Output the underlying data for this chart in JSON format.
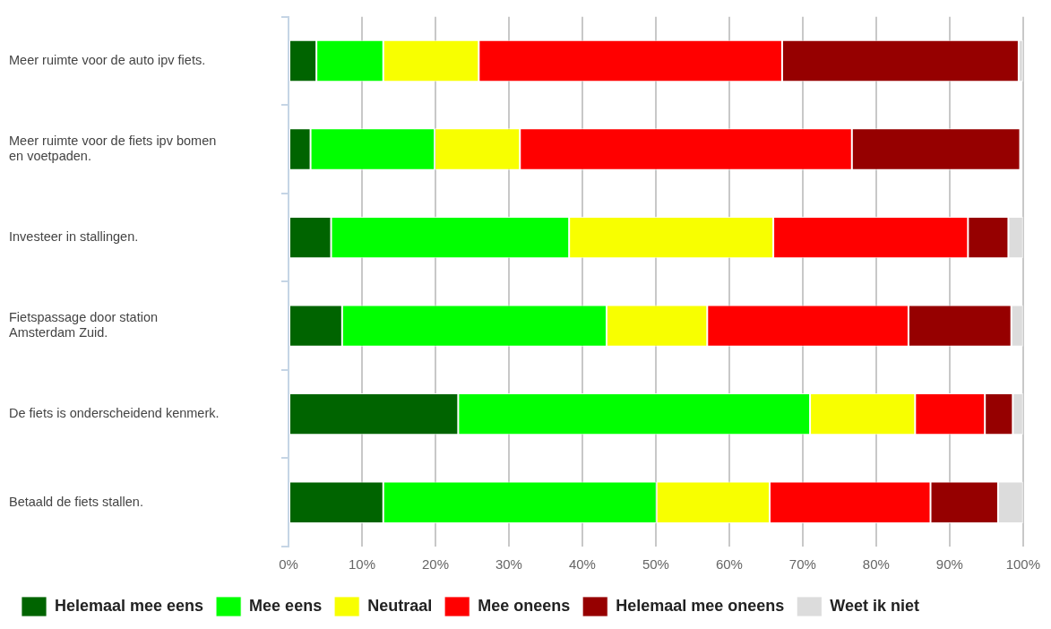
{
  "chart_data": {
    "type": "bar",
    "orientation": "horizontal",
    "stacked": true,
    "categories": [
      "Meer ruimte voor de auto ipv fiets.",
      "Meer ruimte voor de fiets ipv bomen\nen voetpaden.",
      "Investeer in stallingen.",
      "Fietspassage door station\nAmsterdam Zuid.",
      "De fiets is onderscheidend kenmerk.",
      "Betaald de fiets stallen."
    ],
    "series": [
      {
        "name": "Helemaal mee eens",
        "color": "#006400",
        "values": [
          3.8,
          3.0,
          5.8,
          7.3,
          23.1,
          12.9
        ]
      },
      {
        "name": "Mee eens",
        "color": "#00ff00",
        "values": [
          9.1,
          16.9,
          32.4,
          36.0,
          47.9,
          37.2
        ]
      },
      {
        "name": "Neutraal",
        "color": "#f8ff00",
        "values": [
          13.0,
          11.6,
          27.8,
          13.7,
          14.3,
          15.4
        ]
      },
      {
        "name": "Mee oneens",
        "color": "#ff0000",
        "values": [
          41.3,
          45.2,
          26.5,
          27.4,
          9.5,
          21.9
        ]
      },
      {
        "name": "Helemaal mee oneens",
        "color": "#960000",
        "values": [
          32.2,
          22.9,
          5.5,
          14.0,
          3.8,
          9.2
        ]
      },
      {
        "name": "Weet ik niet",
        "color": "#dcdcdc",
        "values": [
          0.6,
          null,
          2.0,
          1.6,
          1.4,
          3.4
        ]
      }
    ],
    "xlim": [
      0,
      100
    ],
    "xticks": [
      {
        "value": 0,
        "label": "0%"
      },
      {
        "value": 10,
        "label": "10%"
      },
      {
        "value": 20,
        "label": "20%"
      },
      {
        "value": 30,
        "label": "30%"
      },
      {
        "value": 40,
        "label": "40%"
      },
      {
        "value": 50,
        "label": "50%"
      },
      {
        "value": 60,
        "label": "60%"
      },
      {
        "value": 70,
        "label": "70%"
      },
      {
        "value": 80,
        "label": "80%"
      },
      {
        "value": 90,
        "label": "90%"
      },
      {
        "value": 100,
        "label": "100%"
      }
    ],
    "grid": "x",
    "legend": "bottom left"
  }
}
